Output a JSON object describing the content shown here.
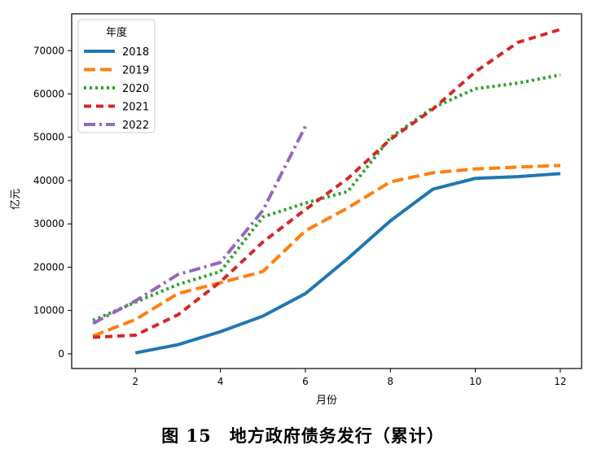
{
  "caption": "图 15　地方政府债务发行（累计）",
  "chart_data": {
    "type": "line",
    "title": "",
    "xlabel": "月份",
    "ylabel": "亿元",
    "xlim": [
      0.5,
      12.5
    ],
    "ylim": [
      -3400,
      78500
    ],
    "xticks": [
      2,
      4,
      6,
      8,
      10,
      12
    ],
    "yticks": [
      0,
      10000,
      20000,
      30000,
      40000,
      50000,
      60000,
      70000
    ],
    "grid": false,
    "legend": {
      "title": "年度",
      "placement": "top-left"
    },
    "series": [
      {
        "name": "2018",
        "color": "#1f77b4",
        "dash": "solid",
        "x": [
          2,
          3,
          4,
          5,
          6,
          7,
          8,
          9,
          10,
          11,
          12
        ],
        "values": [
          200,
          2100,
          5100,
          8700,
          13900,
          22000,
          30700,
          38000,
          40500,
          40900,
          41600
        ]
      },
      {
        "name": "2019",
        "color": "#ff7f0e",
        "dash": "dashed",
        "x": [
          1,
          2,
          3,
          4,
          5,
          6,
          7,
          8,
          9,
          10,
          11,
          12
        ],
        "values": [
          4100,
          7900,
          13900,
          16400,
          19000,
          28400,
          33700,
          39700,
          41800,
          42700,
          43100,
          43500
        ]
      },
      {
        "name": "2020",
        "color": "#2ca02c",
        "dash": "dotted",
        "x": [
          1,
          2,
          3,
          4,
          5,
          6,
          7,
          8,
          9,
          10,
          11,
          12
        ],
        "values": [
          7700,
          11900,
          16000,
          19000,
          31600,
          34800,
          37500,
          49900,
          56800,
          61200,
          62500,
          64400
        ]
      },
      {
        "name": "2021",
        "color": "#d62728",
        "dash": "dashed-short",
        "x": [
          1,
          2,
          3,
          4,
          5,
          6,
          7,
          8,
          9,
          10,
          11,
          12
        ],
        "values": [
          3800,
          4300,
          9000,
          16600,
          25800,
          33300,
          40500,
          49500,
          56500,
          65100,
          71900,
          74900
        ]
      },
      {
        "name": "2022",
        "color": "#9467bd",
        "dash": "dashdot",
        "x": [
          1,
          2,
          3,
          4,
          5,
          6
        ],
        "values": [
          7000,
          12200,
          18300,
          21100,
          33100,
          52500
        ]
      }
    ]
  }
}
